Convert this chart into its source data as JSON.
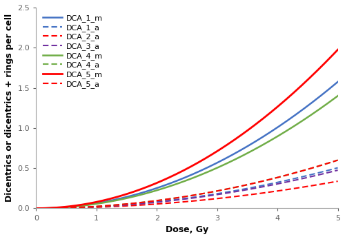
{
  "title": "",
  "xlabel": "Dose, Gy",
  "ylabel": "Dicentrics or dicentrics + rings per cell",
  "xlim": [
    0,
    5
  ],
  "ylim": [
    0,
    2.5
  ],
  "xticks": [
    0,
    1,
    2,
    3,
    4,
    5
  ],
  "yticks": [
    0,
    0.5,
    1.0,
    1.5,
    2.0,
    2.5
  ],
  "curves": [
    {
      "label": "DCA_1_m",
      "color": "#4472C4",
      "linestyle": "solid",
      "linewidth": 1.8,
      "alpha_coef": 0.0,
      "beta": 0.063,
      "c": 0.0
    },
    {
      "label": "DCA_1_a",
      "color": "#4472C4",
      "linestyle": "dashed",
      "linewidth": 1.5,
      "alpha_coef": 0.0,
      "beta": 0.0202,
      "c": 0.0
    },
    {
      "label": "DCA_2_a",
      "color": "#FF0000",
      "linestyle": "dashed",
      "linewidth": 1.5,
      "alpha_coef": 0.0,
      "beta": 0.0135,
      "c": 0.0
    },
    {
      "label": "DCA_3_a",
      "color": "#7030A0",
      "linestyle": "dashed",
      "linewidth": 1.5,
      "alpha_coef": 0.0,
      "beta": 0.019,
      "c": 0.0
    },
    {
      "label": "DCA_4_m",
      "color": "#70AD47",
      "linestyle": "solid",
      "linewidth": 1.8,
      "alpha_coef": 0.0,
      "beta": 0.056,
      "c": 0.0
    },
    {
      "label": "DCA_4_a",
      "color": "#70AD47",
      "linestyle": "dashed",
      "linewidth": 1.5,
      "alpha_coef": 0.0,
      "beta": 0.024,
      "c": 0.0
    },
    {
      "label": "DCA_5_m",
      "color": "#FF0000",
      "linestyle": "solid",
      "linewidth": 2.0,
      "alpha_coef": 0.0,
      "beta": 0.079,
      "c": 0.0
    },
    {
      "label": "DCA_5_a",
      "color": "#FF0000",
      "linestyle": "dashed",
      "linewidth": 1.5,
      "alpha_coef": 0.0,
      "beta": 0.024,
      "c": 0.0
    }
  ],
  "legend_fontsize": 8,
  "axis_fontsize": 9,
  "tick_fontsize": 8,
  "background_color": "#FFFFFF",
  "figsize": [
    5.0,
    3.47
  ],
  "dpi": 100
}
